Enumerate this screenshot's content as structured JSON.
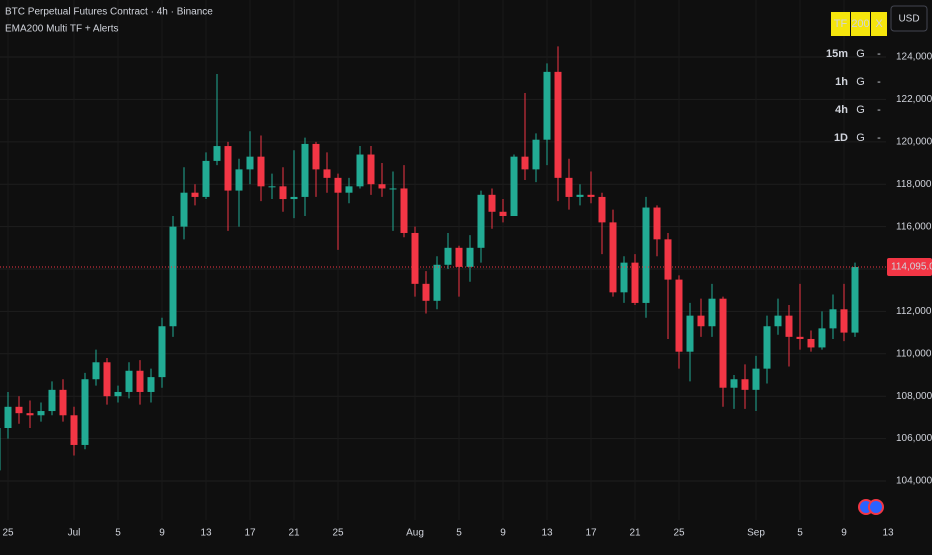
{
  "chart_data": {
    "type": "candlestick",
    "title": "BTC Perpetual Futures Contract · 4h · Binance",
    "subtitle": "EMA200 Multi TF + Alerts",
    "currency": "USD",
    "up_color": "#22ab94",
    "down_color": "#f23645",
    "grid": true,
    "categories": [
      null,
      "25",
      null,
      null,
      null,
      null,
      null,
      "Jul",
      null,
      null,
      null,
      "5",
      null,
      null,
      null,
      "9",
      null,
      null,
      null,
      "13",
      null,
      null,
      null,
      "17",
      null,
      null,
      null,
      "21",
      null,
      null,
      null,
      "25",
      null,
      null,
      null,
      null,
      null,
      null,
      "Aug",
      null,
      null,
      null,
      "5",
      null,
      null,
      null,
      "9",
      null,
      null,
      null,
      "13",
      null,
      null,
      null,
      "17",
      null,
      null,
      null,
      "21",
      null,
      null,
      null,
      "25",
      null,
      null,
      null,
      null,
      null,
      null,
      "Sep",
      null,
      null,
      null,
      "5",
      null,
      null,
      null,
      "9",
      null,
      null,
      null,
      "13"
    ],
    "open": [
      104500,
      106500,
      107500,
      107200,
      107100,
      107300,
      108300,
      107100,
      105700,
      108800,
      109600,
      108000,
      108200,
      109200,
      108200,
      108900,
      111300,
      116000,
      117600,
      117400,
      119100,
      119800,
      117700,
      118700,
      119300,
      117900,
      117900,
      117300,
      117400,
      119900,
      118700,
      118300,
      117600,
      117900,
      119400,
      118000,
      117800,
      117800,
      115700,
      113300,
      112500,
      114200,
      115000,
      114100,
      115000,
      117500,
      116700,
      116500,
      119300,
      118700,
      120100,
      123300,
      118300,
      117400,
      117500,
      117400,
      116200,
      112900,
      114300,
      112400,
      116900,
      115400,
      113500,
      110100,
      111800,
      111300,
      112600,
      108400,
      108800,
      108300,
      109300,
      111300,
      111800,
      110800,
      110700,
      110300,
      111200,
      112100,
      111000,
      null,
      null,
      null
    ],
    "high": [
      106900,
      108200,
      108000,
      107800,
      107700,
      108700,
      108800,
      107500,
      109100,
      110200,
      109800,
      108500,
      109600,
      109700,
      109300,
      111700,
      116500,
      118800,
      118000,
      119500,
      123200,
      120000,
      119200,
      120500,
      120300,
      118500,
      118800,
      119600,
      120200,
      120000,
      119500,
      118500,
      118300,
      119800,
      119800,
      119000,
      118600,
      118900,
      116000,
      113900,
      114600,
      115700,
      115100,
      115600,
      117700,
      117800,
      117300,
      119400,
      122300,
      120400,
      123700,
      124500,
      119200,
      118000,
      118600,
      117600,
      116800,
      114600,
      114700,
      117400,
      117000,
      115700,
      113700,
      112400,
      112600,
      113300,
      112700,
      109000,
      109500,
      109900,
      111800,
      112600,
      112300,
      113300,
      111100,
      112000,
      112800,
      113300,
      114300,
      null,
      null,
      null
    ],
    "low": [
      103700,
      106000,
      106700,
      106500,
      106800,
      107100,
      106800,
      105200,
      105500,
      108500,
      107600,
      107700,
      107900,
      107600,
      107700,
      108400,
      110800,
      115400,
      117000,
      117300,
      118900,
      115800,
      116000,
      118000,
      117200,
      117300,
      116700,
      116400,
      116500,
      117400,
      117600,
      114900,
      117100,
      117800,
      117500,
      117400,
      115800,
      115500,
      112700,
      111900,
      112100,
      114000,
      112700,
      113400,
      114300,
      115900,
      116200,
      116500,
      118200,
      118100,
      118900,
      117200,
      116800,
      117000,
      117100,
      114700,
      112700,
      112400,
      112300,
      111700,
      114600,
      110700,
      109300,
      108700,
      110800,
      110800,
      107500,
      107400,
      107400,
      107300,
      108600,
      110900,
      109400,
      110200,
      110100,
      110200,
      110700,
      110600,
      110800,
      null,
      null,
      null
    ],
    "close": [
      106500,
      107500,
      107200,
      107100,
      107300,
      108300,
      107100,
      105700,
      108800,
      109600,
      108000,
      108200,
      109200,
      108200,
      108900,
      111300,
      116000,
      117600,
      117400,
      119100,
      119800,
      117700,
      118700,
      119300,
      117900,
      117900,
      117300,
      117400,
      119900,
      118700,
      118300,
      117600,
      117900,
      119400,
      118000,
      117800,
      117800,
      115700,
      113300,
      112500,
      114200,
      115000,
      114100,
      115000,
      117500,
      116700,
      116500,
      119300,
      118700,
      120100,
      123300,
      118300,
      117400,
      117500,
      117400,
      116200,
      112900,
      114300,
      112400,
      116900,
      115400,
      113500,
      110100,
      111800,
      111300,
      112600,
      108400,
      108800,
      108300,
      109300,
      111300,
      111800,
      110800,
      110700,
      110300,
      111200,
      112100,
      111000,
      114095,
      null,
      null,
      null
    ],
    "last_price": {
      "value": 114095,
      "label": "114,095.0"
    },
    "ylim": [
      102160,
      126690
    ],
    "yticks": [
      {
        "value": 104000,
        "label": "104,000.0"
      },
      {
        "value": 106000,
        "label": "106,000.0"
      },
      {
        "value": 108000,
        "label": "108,000.0"
      },
      {
        "value": 110000,
        "label": "110,000.0"
      },
      {
        "value": 112000,
        "label": "112,000.0"
      },
      {
        "value": 114000,
        "label": "114,000.0"
      },
      {
        "value": 116000,
        "label": "116,000.0"
      },
      {
        "value": 118000,
        "label": "118,000.0"
      },
      {
        "value": 120000,
        "label": "120,000.0"
      },
      {
        "value": 122000,
        "label": "122,000.0"
      },
      {
        "value": 124000,
        "label": "124,000.0"
      }
    ]
  },
  "indicator_table": {
    "header": [
      "TF",
      "200",
      "X"
    ],
    "rows": [
      [
        "15m",
        "G",
        "-"
      ],
      [
        "1h",
        "G",
        "-"
      ],
      [
        "4h",
        "G",
        "-"
      ],
      [
        "1D",
        "G",
        "-"
      ]
    ]
  }
}
